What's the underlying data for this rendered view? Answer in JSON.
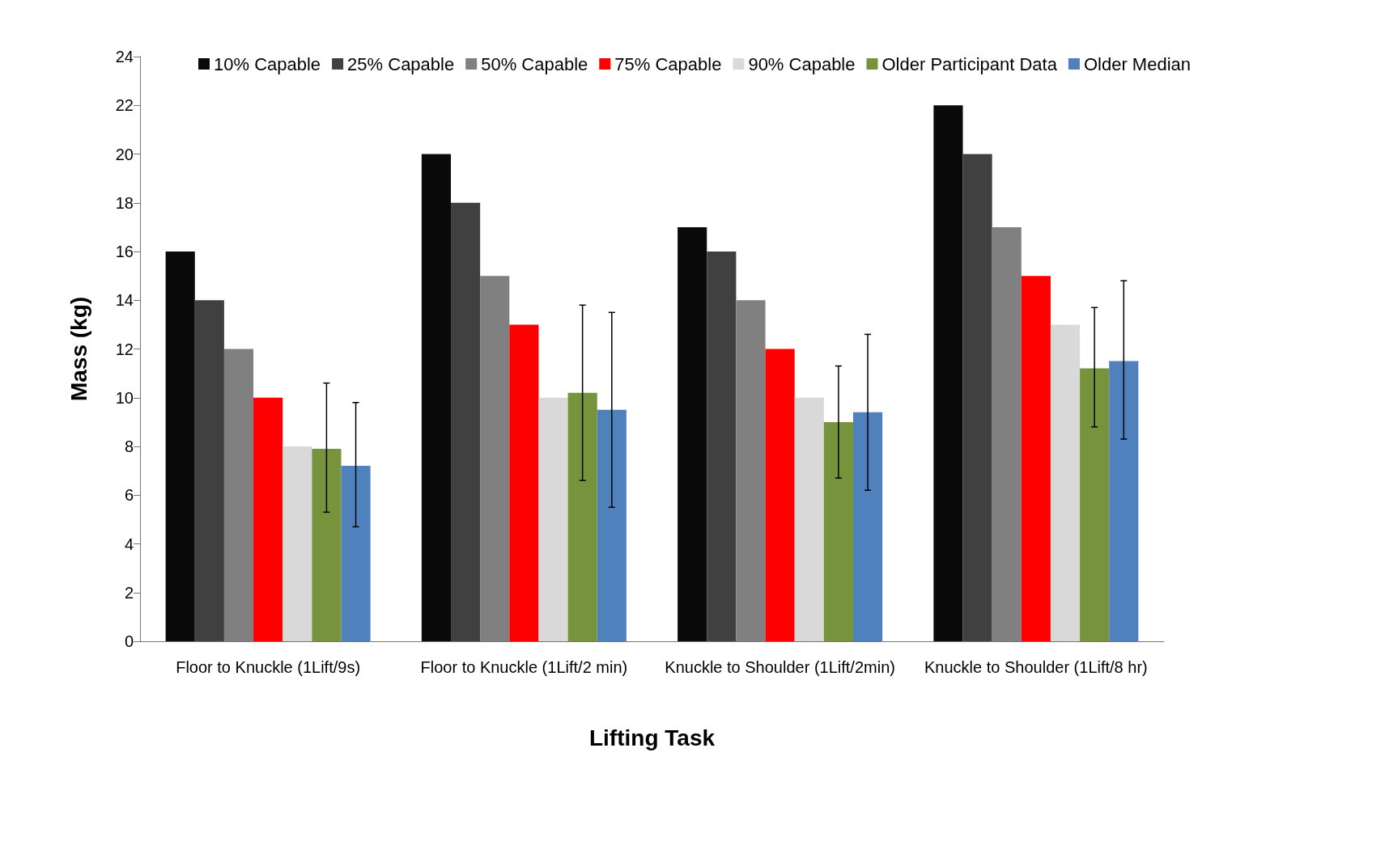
{
  "chart_data": {
    "type": "bar",
    "xlabel": "Lifting Task",
    "ylabel": "Mass (kg)",
    "categories": [
      "Floor to Knuckle (1Lift/9s)",
      "Floor to Knuckle (1Lift/2 min)",
      "Knuckle to Shoulder (1Lift/2min)",
      "Knuckle to Shoulder (1Lift/8 hr)"
    ],
    "series": [
      {
        "name": "10% Capable",
        "color": "#0a0a0a",
        "values": [
          16,
          20,
          17,
          22
        ]
      },
      {
        "name": "25% Capable",
        "color": "#404040",
        "values": [
          14,
          18,
          16,
          20
        ]
      },
      {
        "name": "50% Capable",
        "color": "#808080",
        "values": [
          12,
          15,
          14,
          17
        ]
      },
      {
        "name": "75% Capable",
        "color": "#ff0000",
        "values": [
          10,
          13,
          12,
          15
        ]
      },
      {
        "name": "90% Capable",
        "color": "#d9d9d9",
        "values": [
          8,
          10,
          10,
          13
        ]
      },
      {
        "name": "Older Participant Data",
        "color": "#77933c",
        "values": [
          7.9,
          10.2,
          9.0,
          11.2
        ],
        "errors": [
          [
            5.3,
            10.6
          ],
          [
            6.6,
            13.8
          ],
          [
            6.7,
            11.3
          ],
          [
            8.8,
            13.7
          ]
        ]
      },
      {
        "name": "Older Median",
        "color": "#4f81bd",
        "values": [
          7.2,
          9.5,
          9.4,
          11.5
        ],
        "errors": [
          [
            4.7,
            9.8
          ],
          [
            5.5,
            13.5
          ],
          [
            6.2,
            12.6
          ],
          [
            8.3,
            14.8
          ]
        ]
      }
    ],
    "ylim": [
      0,
      24
    ],
    "yticks": [
      0,
      2,
      4,
      6,
      8,
      10,
      12,
      14,
      16,
      18,
      20,
      22,
      24
    ],
    "grid": false,
    "legend": "top"
  }
}
